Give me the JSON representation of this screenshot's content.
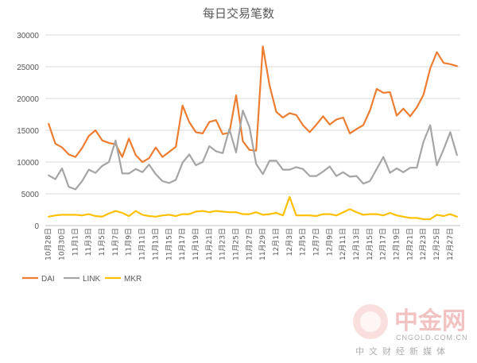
{
  "chart_data": {
    "type": "line",
    "title": "每日交易笔数",
    "xlabel": "",
    "ylabel": "",
    "ylim": [
      0,
      30000
    ],
    "yticks": [
      0,
      5000,
      10000,
      15000,
      20000,
      25000,
      30000
    ],
    "grid": "horizontal",
    "legend_position": "bottom-left",
    "categories": [
      "10月28日",
      "10月29日",
      "10月30日",
      "10月31日",
      "11月1日",
      "11月2日",
      "11月3日",
      "11月4日",
      "11月5日",
      "11月6日",
      "11月7日",
      "11月8日",
      "11月9日",
      "11月10日",
      "11月11日",
      "11月12日",
      "11月13日",
      "11月14日",
      "11月15日",
      "11月16日",
      "11月17日",
      "11月18日",
      "11月19日",
      "11月20日",
      "11月21日",
      "11月22日",
      "11月23日",
      "11月24日",
      "11月25日",
      "11月26日",
      "11月27日",
      "11月28日",
      "11月29日",
      "11月30日",
      "12月1日",
      "12月2日",
      "12月3日",
      "12月4日",
      "12月5日",
      "12月6日",
      "12月7日",
      "12月8日",
      "12月9日",
      "12月10日",
      "12月11日",
      "12月12日",
      "12月13日",
      "12月14日",
      "12月15日",
      "12月16日",
      "12月17日",
      "12月18日",
      "12月19日",
      "12月20日",
      "12月21日",
      "12月22日",
      "12月23日",
      "12月24日",
      "12月25日",
      "12月26日",
      "12月27日",
      "12月28日"
    ],
    "xtick_labels": [
      "10月28日",
      "10月30日",
      "11月1日",
      "11月3日",
      "11月5日",
      "11月7日",
      "11月9日",
      "11月11日",
      "11月13日",
      "11月15日",
      "11月17日",
      "11月19日",
      "11月21日",
      "11月23日",
      "11月25日",
      "11月27日",
      "11月29日",
      "12月1日",
      "12月3日",
      "12月5日",
      "12月7日",
      "12月9日",
      "12月11日",
      "12月13日",
      "12月15日",
      "12月17日",
      "12月19日",
      "12月21日",
      "12月23日",
      "12月25日",
      "12月27日"
    ],
    "series": [
      {
        "name": "DAI",
        "color": "#ED7D31",
        "values": [
          16000,
          12900,
          12300,
          11200,
          10800,
          12200,
          14100,
          15000,
          13400,
          13000,
          12800,
          10800,
          13700,
          11100,
          10000,
          10600,
          12300,
          10800,
          11600,
          12400,
          18900,
          16300,
          14700,
          14500,
          16300,
          16600,
          14400,
          14600,
          20500,
          13300,
          11900,
          11800,
          28200,
          22100,
          17900,
          17000,
          17700,
          17400,
          15800,
          14700,
          15900,
          17200,
          15900,
          16700,
          17000,
          14500,
          15200,
          15800,
          18100,
          21500,
          20900,
          21000,
          17300,
          18400,
          17200,
          18600,
          20600,
          24700,
          27300,
          25600,
          25400,
          25100
        ]
      },
      {
        "name": "LINK",
        "color": "#A5A5A5",
        "values": [
          7900,
          7300,
          9000,
          6100,
          5700,
          7000,
          8800,
          8300,
          9400,
          10000,
          13400,
          8200,
          8200,
          8900,
          8400,
          9600,
          8100,
          7000,
          6700,
          7200,
          9900,
          11200,
          9500,
          10000,
          12500,
          11700,
          11400,
          15200,
          11500,
          18100,
          15500,
          9700,
          8100,
          10200,
          10200,
          8800,
          8800,
          9200,
          8900,
          7800,
          7800,
          8500,
          9300,
          7800,
          8400,
          7700,
          7800,
          6600,
          7000,
          8900,
          10800,
          8300,
          9000,
          8400,
          9100,
          9100,
          13200,
          15800,
          9500,
          12000,
          14700,
          11100
        ]
      },
      {
        "name": "MKR",
        "color": "#FFC000",
        "values": [
          1400,
          1600,
          1700,
          1700,
          1700,
          1600,
          1800,
          1500,
          1400,
          1900,
          2300,
          2000,
          1500,
          2300,
          1700,
          1500,
          1400,
          1600,
          1700,
          1500,
          1800,
          1800,
          2200,
          2300,
          2100,
          2300,
          2200,
          2100,
          2100,
          1800,
          1800,
          2100,
          1700,
          1800,
          2000,
          1600,
          4500,
          1600,
          1600,
          1600,
          1500,
          1800,
          1800,
          1600,
          2100,
          2600,
          2100,
          1700,
          1800,
          1800,
          1600,
          2000,
          1600,
          1400,
          1200,
          1200,
          1000,
          1000,
          1700,
          1500,
          1800,
          1400
        ]
      }
    ]
  },
  "watermark": {
    "brand": "中金网",
    "url": "CNGOLD.COM.CN",
    "tagline": "中文财经新媒体"
  }
}
